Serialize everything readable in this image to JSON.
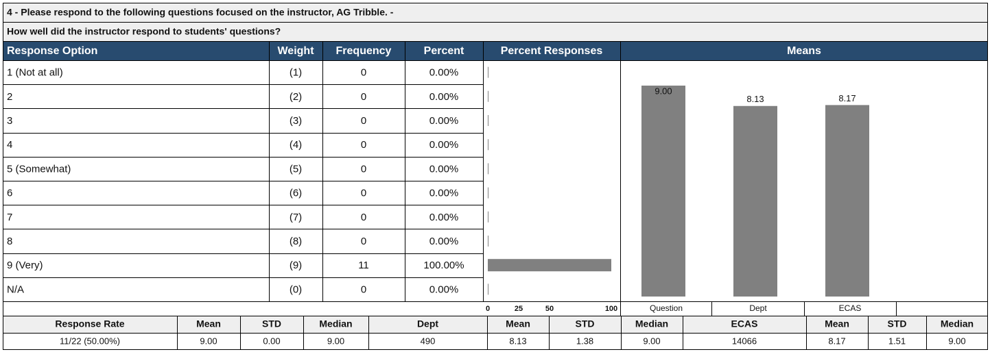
{
  "header": {
    "title": "4 - Please respond to the following questions focused on the instructor, AG Tribble. -",
    "question": "How well did the instructor respond to students' questions?"
  },
  "table": {
    "columns": [
      "Response Option",
      "Weight",
      "Frequency",
      "Percent",
      "Percent Responses",
      "Means"
    ],
    "rows": [
      [
        "1 (Not at all)",
        "(1)",
        "0",
        "0.00%"
      ],
      [
        "2",
        "(2)",
        "0",
        "0.00%"
      ],
      [
        "3",
        "(3)",
        "0",
        "0.00%"
      ],
      [
        "4",
        "(4)",
        "0",
        "0.00%"
      ],
      [
        "5 (Somewhat)",
        "(5)",
        "0",
        "0.00%"
      ],
      [
        "6",
        "(6)",
        "0",
        "0.00%"
      ],
      [
        "7",
        "(7)",
        "0",
        "0.00%"
      ],
      [
        "8",
        "(8)",
        "0",
        "0.00%"
      ],
      [
        "9 (Very)",
        "(9)",
        "11",
        "100.00%"
      ],
      [
        "N/A",
        "(0)",
        "0",
        "0.00%"
      ]
    ]
  },
  "percent_chart": {
    "type": "bar",
    "values": [
      0,
      0,
      0,
      0,
      0,
      0,
      0,
      0,
      100,
      0
    ],
    "xlim": [
      0,
      100
    ],
    "xticks": [
      0,
      25,
      50,
      100
    ],
    "color": "#808080"
  },
  "means_chart": {
    "type": "bar",
    "categories": [
      "Question",
      "Dept",
      "ECAS"
    ],
    "values": [
      9,
      8.13,
      8.17
    ],
    "value_labels": [
      "9.00",
      "8.13",
      "8.17"
    ],
    "ylim": [
      0,
      9
    ],
    "color": "#808080"
  },
  "summary": {
    "columns": [
      "Response Rate",
      "Mean",
      "STD",
      "Median",
      "Dept",
      "Mean",
      "STD",
      "Median",
      "ECAS",
      "Mean",
      "STD",
      "Median"
    ],
    "row": [
      "11/22 (50.00%)",
      "9.00",
      "0.00",
      "9.00",
      "490",
      "8.13",
      "1.38",
      "9.00",
      "14066",
      "8.17",
      "1.51",
      "9.00"
    ]
  }
}
